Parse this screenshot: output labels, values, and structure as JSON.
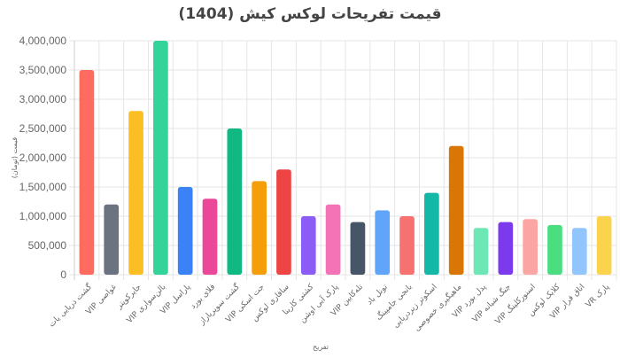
{
  "chart_data": {
    "type": "bar",
    "title": "قیمت تفریحات لوکس کیش (1404)",
    "xlabel": "تفریح",
    "ylabel": "قیمت (تومان)",
    "ylim": [
      0,
      4000000
    ],
    "yticks": [
      "0",
      "500,000",
      "1,000,000",
      "1,500,000",
      "2,000,000",
      "2,500,000",
      "3,000,000",
      "3,500,000",
      "4,000,000"
    ],
    "grid": true,
    "legend": "none",
    "categories": [
      "گشت دریایی یات",
      "VIP غواصی",
      "جایرکوپتر",
      "VIP بالن‌سواری",
      "VIP پاراسل",
      "فلای بورد",
      "گشت سوپریاراز",
      "VIP جت اسکی",
      "سافاری لوکس",
      "کشتی کارینا",
      "پارک آبی اوشن",
      "VIP تله‌کابین",
      "تونل باد",
      "بانجی جامپینگ",
      "اسکوتر زیردریایی",
      "ماهیگیری خصوصی",
      "VIP پدل بورد",
      "VIP جنگ شبانه",
      "VIP اسنورکلینگ",
      "کلابک لوکس",
      "VIP اتاق فرار",
      "VR پارک"
    ],
    "values": [
      3500000,
      1200000,
      2800000,
      4000000,
      1500000,
      1300000,
      2500000,
      1600000,
      1800000,
      1000000,
      1200000,
      900000,
      1100000,
      1000000,
      1400000,
      2200000,
      800000,
      900000,
      950000,
      850000,
      800000,
      1000000
    ],
    "colors": [
      "#FF6B5E",
      "#6B7280",
      "#FBBF24",
      "#34D399",
      "#3B82F6",
      "#EC4899",
      "#10B981",
      "#F59E0B",
      "#EF4444",
      "#8B5CF6",
      "#F472B6",
      "#475569",
      "#60A5FA",
      "#F87171",
      "#14B8A6",
      "#D97706",
      "#6EE7B7",
      "#7C3AED",
      "#FCA5A5",
      "#4ADE80",
      "#93C5FD",
      "#FCD34D"
    ]
  }
}
